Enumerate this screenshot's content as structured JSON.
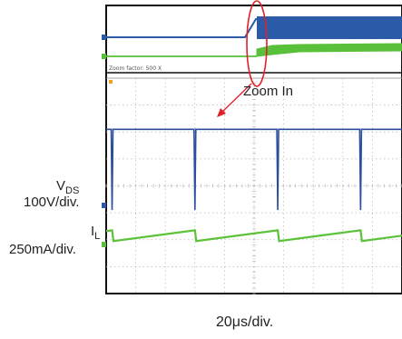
{
  "labels": {
    "zoom_in": "Zoom In",
    "vds_main": "V",
    "vds_sub": "DS",
    "vds_unit": "100V/div.",
    "il_main": "I",
    "il_sub": "L",
    "il_unit": "250mA/div.",
    "time_per_div": "20μs/div.",
    "zoom_factor": "Zoom factor: 500 X"
  },
  "colors": {
    "vds_trace": "#2b4f9c",
    "il_trace": "#5cc23a",
    "overview_vds": "#2b5aa8",
    "overview_il": "#58c039",
    "zoom_arrow": "#e0202a",
    "grid": "#b8b8b8",
    "frame": "#111111"
  },
  "chart_data": {
    "type": "line",
    "title": "",
    "xlabel": "20μs/div.",
    "divisions": {
      "x": 10,
      "y": 8
    },
    "series": [
      {
        "name": "VDS",
        "scale": "100V/div.",
        "level_div": 6.1,
        "spike_depth_div": 3.0,
        "spike_times_div": [
          0.2,
          3.0,
          5.8,
          8.6
        ]
      },
      {
        "name": "IL",
        "scale": "250mA/div.",
        "sawtooth_low_div": 1.95,
        "sawtooth_high_div": 2.35,
        "period_div": 2.8,
        "reset_times_div": [
          0.2,
          3.0,
          5.8,
          8.6
        ]
      }
    ]
  }
}
